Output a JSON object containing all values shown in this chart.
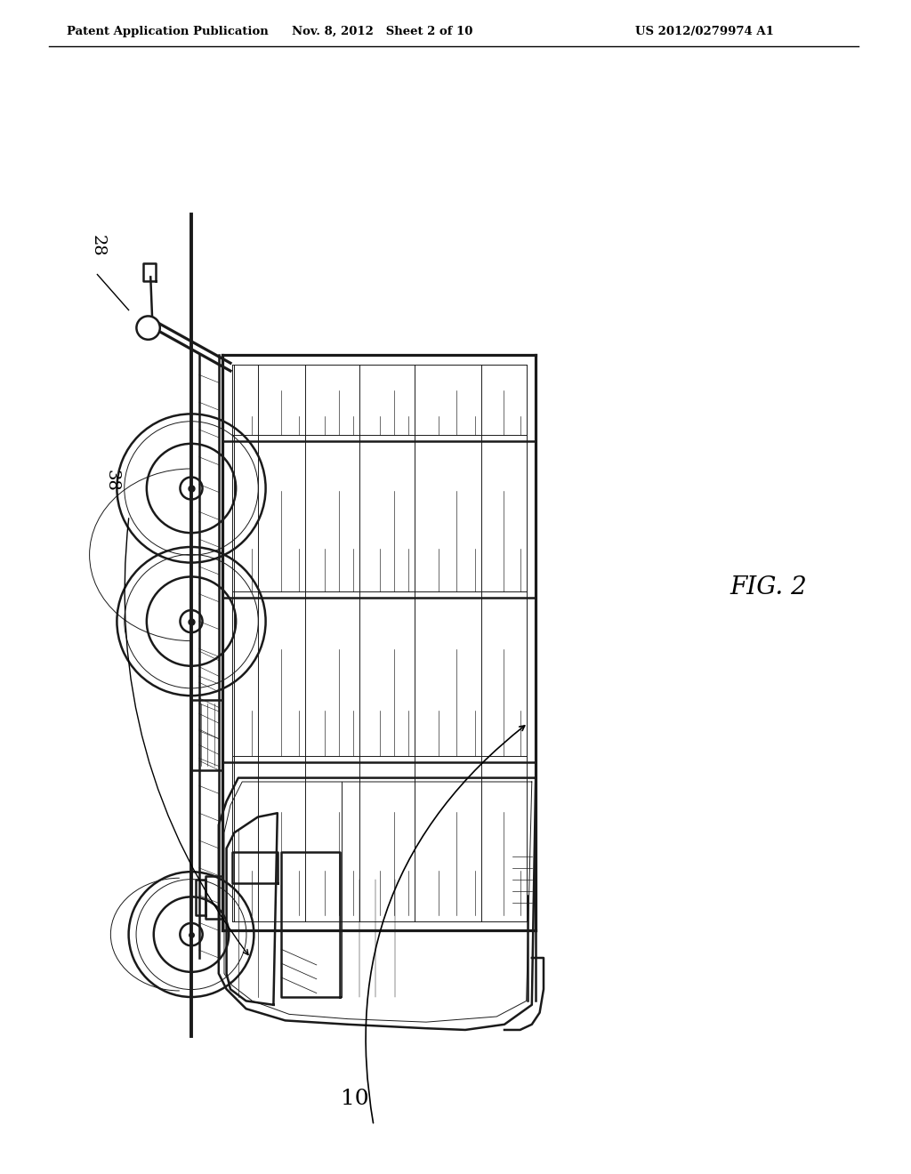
{
  "title_left": "Patent Application Publication",
  "title_mid": "Nov. 8, 2012   Sheet 2 of 10",
  "title_right": "US 2012/0279974 A1",
  "fig_label": "FIG. 2",
  "label_10": "10",
  "label_28": "28",
  "label_38": "38",
  "bg_color": "#ffffff",
  "line_color": "#1a1a1a",
  "lw_main": 1.8,
  "lw_thin": 0.7,
  "lw_thick": 2.8
}
